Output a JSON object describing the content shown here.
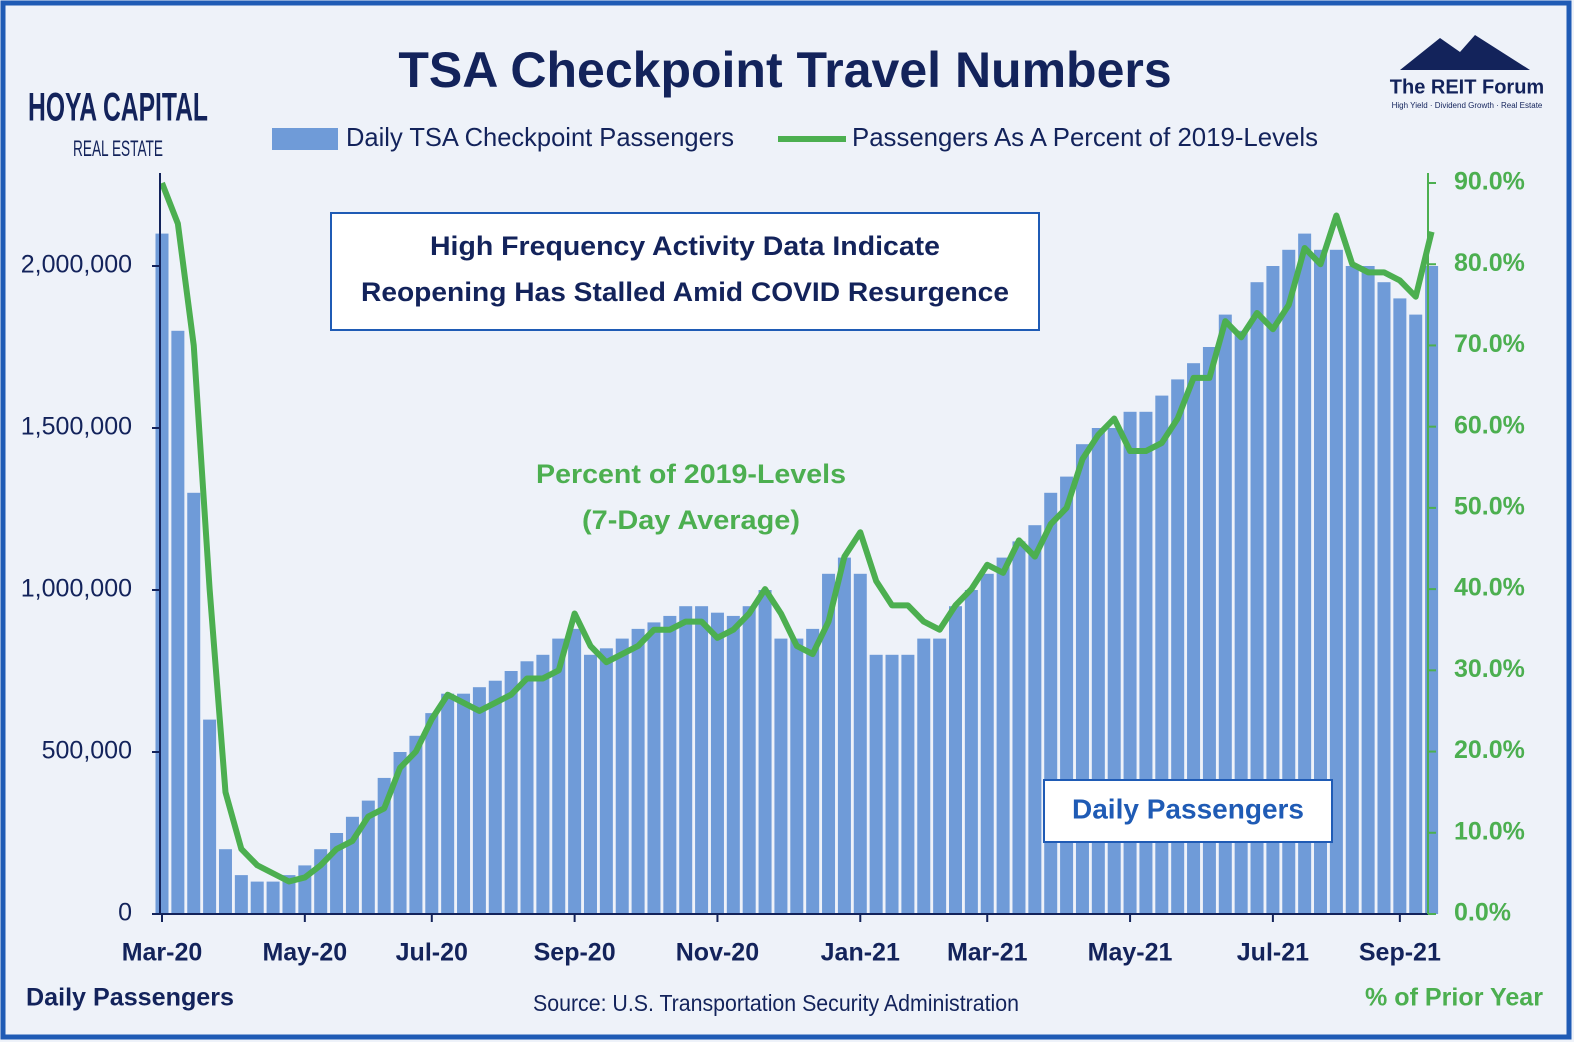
{
  "chart_data": {
    "type": "bar-line",
    "title": "TSA Checkpoint Travel Numbers",
    "logos": {
      "left": [
        "HOYA CAPITAL",
        "REAL ESTATE"
      ],
      "right": [
        "The REIT Forum",
        "High Yield · Dividend Growth · Real Estate"
      ]
    },
    "annotations": {
      "box": [
        "High Frequency Activity Data Indicate",
        "Reopening Has Stalled Amid COVID Resurgence"
      ],
      "line_note": [
        "Percent of 2019-Levels",
        "(7-Day Average)"
      ],
      "bar_note": "Daily Passengers"
    },
    "ylabel": "Daily Passengers",
    "y2label": "% of Prior Year",
    "source": "Source: U.S. Transportation Security Administration",
    "categories": [
      "Mar-20",
      null,
      null,
      null,
      null,
      null,
      null,
      null,
      null,
      "May-20",
      null,
      null,
      null,
      null,
      null,
      null,
      null,
      "Jul-20",
      null,
      null,
      null,
      null,
      null,
      null,
      null,
      null,
      "Sep-20",
      null,
      null,
      null,
      null,
      null,
      null,
      null,
      null,
      "Nov-20",
      null,
      null,
      null,
      null,
      null,
      null,
      null,
      null,
      "Jan-21",
      null,
      null,
      null,
      null,
      null,
      null,
      null,
      "Mar-21",
      null,
      null,
      null,
      null,
      null,
      null,
      null,
      null,
      "May-21",
      null,
      null,
      null,
      null,
      null,
      null,
      null,
      null,
      "Jul-21",
      null,
      null,
      null,
      null,
      null,
      null,
      null,
      "Sep-21",
      null,
      null
    ],
    "series": [
      {
        "name": "Daily TSA Checkpoint Passengers",
        "color": "#6f9bd8",
        "values": [
          2100000,
          1800000,
          1300000,
          600000,
          200000,
          120000,
          100000,
          100000,
          120000,
          150000,
          200000,
          250000,
          300000,
          350000,
          420000,
          500000,
          550000,
          620000,
          680000,
          680000,
          700000,
          720000,
          750000,
          780000,
          800000,
          850000,
          880000,
          800000,
          820000,
          850000,
          880000,
          900000,
          920000,
          950000,
          950000,
          930000,
          920000,
          950000,
          1000000,
          850000,
          850000,
          880000,
          1050000,
          1100000,
          1050000,
          800000,
          800000,
          800000,
          850000,
          850000,
          950000,
          1000000,
          1050000,
          1100000,
          1150000,
          1200000,
          1300000,
          1350000,
          1450000,
          1500000,
          1500000,
          1550000,
          1550000,
          1600000,
          1650000,
          1700000,
          1750000,
          1850000,
          1800000,
          1950000,
          2000000,
          2050000,
          2100000,
          2050000,
          2050000,
          2000000,
          2000000,
          1950000,
          1900000,
          1850000,
          2000000
        ]
      },
      {
        "name": "Passengers As A Percent of 2019-Levels",
        "color": "#4caf50",
        "axis": "y2",
        "values": [
          90,
          85,
          70,
          40,
          15,
          8,
          6,
          5,
          4,
          4.5,
          6,
          8,
          9,
          12,
          13,
          18,
          20,
          24,
          27,
          26,
          25,
          26,
          27,
          29,
          29,
          30,
          37,
          33,
          31,
          32,
          33,
          35,
          35,
          36,
          36,
          34,
          35,
          37,
          40,
          37,
          33,
          32,
          36,
          44,
          47,
          41,
          38,
          38,
          36,
          35,
          38,
          40,
          43,
          42,
          46,
          44,
          48,
          50,
          56,
          59,
          61,
          57,
          57,
          58,
          61,
          66,
          66,
          73,
          71,
          74,
          72,
          75,
          82,
          80,
          86,
          80,
          79,
          79,
          78,
          76,
          84
        ]
      }
    ],
    "ylim": [
      0,
      2250000
    ],
    "yticks": [
      0,
      {
        "value": 500000,
        "label": "500,000"
      },
      {
        "value": 1000000,
        "label": "1,000,000"
      },
      {
        "value": 1500000,
        "label": "1,500,000"
      },
      {
        "value": 2000000,
        "label": "2,000,000"
      }
    ],
    "y2lim": [
      0,
      90
    ],
    "y2ticks": [
      {
        "value": 0,
        "label": "0.0%"
      },
      {
        "value": 10,
        "label": "10.0%"
      },
      {
        "value": 20,
        "label": "20.0%"
      },
      {
        "value": 30,
        "label": "30.0%"
      },
      {
        "value": 40,
        "label": "40.0%"
      },
      {
        "value": 50,
        "label": "50.0%"
      },
      {
        "value": 60,
        "label": "60.0%"
      },
      {
        "value": 70,
        "label": "70.0%"
      },
      {
        "value": 80,
        "label": "80.0%"
      },
      {
        "value": 90,
        "label": "90.0%"
      }
    ]
  }
}
